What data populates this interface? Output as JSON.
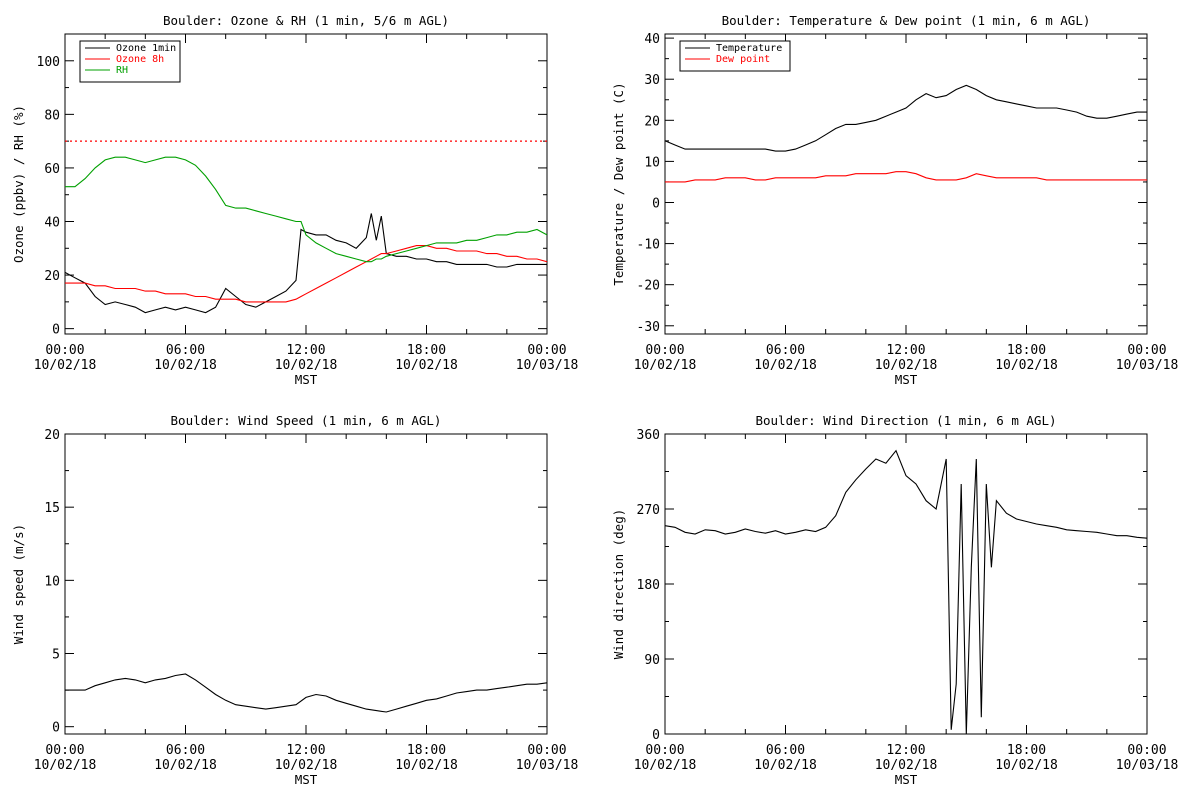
{
  "colors": {
    "black": "#000000",
    "red": "#ff0000",
    "green": "#00a000",
    "frame": "#000000"
  },
  "x_axis_shared": {
    "tick_times": [
      "00:00",
      "06:00",
      "12:00",
      "18:00",
      "00:00"
    ],
    "tick_dates": [
      "10/02/18",
      "10/02/18",
      "10/02/18",
      "10/02/18",
      "10/03/18"
    ],
    "xlabel": "MST",
    "xlim_hours": [
      0,
      24
    ]
  },
  "chart_data": [
    {
      "type": "line",
      "title": "Boulder: Ozone & RH (1 min, 5/6 m AGL)",
      "ylabel": "Ozone (ppbv) / RH (%)",
      "xlabel": "MST",
      "ylim": [
        -2,
        110
      ],
      "yticks": [
        0,
        20,
        40,
        60,
        80,
        100
      ],
      "legend": "top-left",
      "reference_line": {
        "y": 70,
        "color": "red",
        "style": "dotted"
      },
      "x_hours": [
        0,
        0.5,
        1,
        1.5,
        2,
        2.5,
        3,
        3.5,
        4,
        4.5,
        5,
        5.5,
        6,
        6.5,
        7,
        7.5,
        8,
        8.5,
        9,
        9.5,
        10,
        10.5,
        11,
        11.5,
        11.75,
        12,
        12.5,
        13,
        13.5,
        14,
        14.5,
        15,
        15.25,
        15.5,
        15.75,
        16,
        16.5,
        17,
        17.5,
        18,
        18.5,
        19,
        19.5,
        20,
        20.5,
        21,
        21.5,
        22,
        22.5,
        23,
        23.5,
        24
      ],
      "series": [
        {
          "name": "Ozone 1min",
          "color": "black",
          "values": [
            21,
            19,
            17,
            12,
            9,
            10,
            9,
            8,
            6,
            7,
            8,
            7,
            8,
            7,
            6,
            8,
            15,
            12,
            9,
            8,
            10,
            12,
            14,
            18,
            37,
            36,
            35,
            35,
            33,
            32,
            30,
            34,
            43,
            33,
            42,
            28,
            27,
            27,
            26,
            26,
            25,
            25,
            24,
            24,
            24,
            24,
            23,
            23,
            24,
            24,
            24,
            24
          ]
        },
        {
          "name": "Ozone 8h",
          "color": "red",
          "values": [
            17,
            17,
            17,
            16,
            16,
            15,
            15,
            15,
            14,
            14,
            13,
            13,
            13,
            12,
            12,
            11,
            11,
            11,
            10,
            10,
            10,
            10,
            10,
            11,
            12,
            13,
            15,
            17,
            19,
            21,
            23,
            25,
            26,
            27,
            28,
            28,
            29,
            30,
            31,
            31,
            30,
            30,
            29,
            29,
            29,
            28,
            28,
            27,
            27,
            26,
            26,
            25
          ]
        },
        {
          "name": "RH",
          "color": "green",
          "values": [
            53,
            53,
            56,
            60,
            63,
            64,
            64,
            63,
            62,
            63,
            64,
            64,
            63,
            61,
            57,
            52,
            46,
            45,
            45,
            44,
            43,
            42,
            41,
            40,
            40,
            35,
            32,
            30,
            28,
            27,
            26,
            25,
            25,
            26,
            26,
            27,
            28,
            29,
            30,
            31,
            32,
            32,
            32,
            33,
            33,
            34,
            35,
            35,
            36,
            36,
            37,
            35
          ]
        }
      ]
    },
    {
      "type": "line",
      "title": "Boulder: Temperature & Dew point (1 min, 6 m AGL)",
      "ylabel": "Temperature / Dew point (C)",
      "xlabel": "MST",
      "ylim": [
        -32,
        41
      ],
      "yticks": [
        -30,
        -20,
        -10,
        0,
        10,
        20,
        30,
        40
      ],
      "legend": "top-left",
      "x_hours": [
        0,
        0.5,
        1,
        1.5,
        2,
        2.5,
        3,
        3.5,
        4,
        4.5,
        5,
        5.5,
        6,
        6.5,
        7,
        7.5,
        8,
        8.5,
        9,
        9.5,
        10,
        10.5,
        11,
        11.5,
        12,
        12.5,
        13,
        13.5,
        14,
        14.5,
        15,
        15.5,
        16,
        16.5,
        17,
        17.5,
        18,
        18.5,
        19,
        19.5,
        20,
        20.5,
        21,
        21.5,
        22,
        22.5,
        23,
        23.5,
        24
      ],
      "series": [
        {
          "name": "Temperature",
          "color": "black",
          "values": [
            15,
            14,
            13,
            13,
            13,
            13,
            13,
            13,
            13,
            13,
            13,
            12.5,
            12.5,
            13,
            14,
            15,
            16.5,
            18,
            19,
            19,
            19.5,
            20,
            21,
            22,
            23,
            25,
            26.5,
            25.5,
            26,
            27.5,
            28.5,
            27.5,
            26,
            25,
            24.5,
            24,
            23.5,
            23,
            23,
            23,
            22.5,
            22,
            21,
            20.5,
            20.5,
            21,
            21.5,
            22,
            22
          ]
        },
        {
          "name": "Dew point",
          "color": "red",
          "values": [
            5,
            5,
            5,
            5.5,
            5.5,
            5.5,
            6,
            6,
            6,
            5.5,
            5.5,
            6,
            6,
            6,
            6,
            6,
            6.5,
            6.5,
            6.5,
            7,
            7,
            7,
            7,
            7.5,
            7.5,
            7,
            6,
            5.5,
            5.5,
            5.5,
            6,
            7,
            6.5,
            6,
            6,
            6,
            6,
            6,
            5.5,
            5.5,
            5.5,
            5.5,
            5.5,
            5.5,
            5.5,
            5.5,
            5.5,
            5.5,
            5.5
          ]
        }
      ]
    },
    {
      "type": "line",
      "title": "Boulder: Wind Speed (1 min, 6 m AGL)",
      "ylabel": "Wind speed (m/s)",
      "xlabel": "MST",
      "ylim": [
        -0.5,
        20
      ],
      "yticks": [
        0,
        5,
        10,
        15,
        20
      ],
      "x_hours": [
        0,
        0.5,
        1,
        1.5,
        2,
        2.5,
        3,
        3.5,
        4,
        4.5,
        5,
        5.5,
        6,
        6.5,
        7,
        7.5,
        8,
        8.5,
        9,
        9.5,
        10,
        10.5,
        11,
        11.5,
        12,
        12.5,
        13,
        13.5,
        14,
        14.5,
        15,
        15.5,
        16,
        16.5,
        17,
        17.5,
        18,
        18.5,
        19,
        19.5,
        20,
        20.5,
        21,
        21.5,
        22,
        22.5,
        23,
        23.5,
        24
      ],
      "series": [
        {
          "name": "",
          "color": "black",
          "values": [
            2.5,
            2.5,
            2.5,
            2.8,
            3,
            3.2,
            3.3,
            3.2,
            3.0,
            3.2,
            3.3,
            3.5,
            3.6,
            3.2,
            2.7,
            2.2,
            1.8,
            1.5,
            1.4,
            1.3,
            1.2,
            1.3,
            1.4,
            1.5,
            2.0,
            2.2,
            2.1,
            1.8,
            1.6,
            1.4,
            1.2,
            1.1,
            1.0,
            1.2,
            1.4,
            1.6,
            1.8,
            1.9,
            2.1,
            2.3,
            2.4,
            2.5,
            2.5,
            2.6,
            2.7,
            2.8,
            2.9,
            2.9,
            3.0
          ]
        }
      ]
    },
    {
      "type": "line",
      "title": "Boulder: Wind Direction (1 min, 6 m AGL)",
      "ylabel": "Wind direction (deg)",
      "xlabel": "MST",
      "ylim": [
        0,
        360
      ],
      "yticks": [
        0,
        90,
        180,
        270,
        360
      ],
      "x_hours": [
        0,
        0.5,
        1,
        1.5,
        2,
        2.5,
        3,
        3.5,
        4,
        4.5,
        5,
        5.5,
        6,
        6.5,
        7,
        7.5,
        8,
        8.5,
        9,
        9.5,
        10,
        10.5,
        11,
        11.5,
        12,
        12.5,
        13,
        13.5,
        14,
        14.25,
        14.5,
        14.75,
        15,
        15.25,
        15.5,
        15.75,
        16,
        16.25,
        16.5,
        17,
        17.5,
        18,
        18.5,
        19,
        19.5,
        20,
        20.5,
        21,
        21.5,
        22,
        22.5,
        23,
        23.5,
        24
      ],
      "series": [
        {
          "name": "",
          "color": "black",
          "values": [
            250,
            248,
            242,
            240,
            245,
            244,
            240,
            242,
            246,
            243,
            241,
            244,
            240,
            242,
            245,
            243,
            248,
            262,
            290,
            305,
            318,
            330,
            325,
            340,
            310,
            300,
            280,
            270,
            330,
            5,
            60,
            300,
            0,
            200,
            330,
            20,
            300,
            200,
            280,
            265,
            258,
            255,
            252,
            250,
            248,
            245,
            244,
            243,
            242,
            240,
            238,
            238,
            236,
            235
          ]
        }
      ]
    }
  ]
}
